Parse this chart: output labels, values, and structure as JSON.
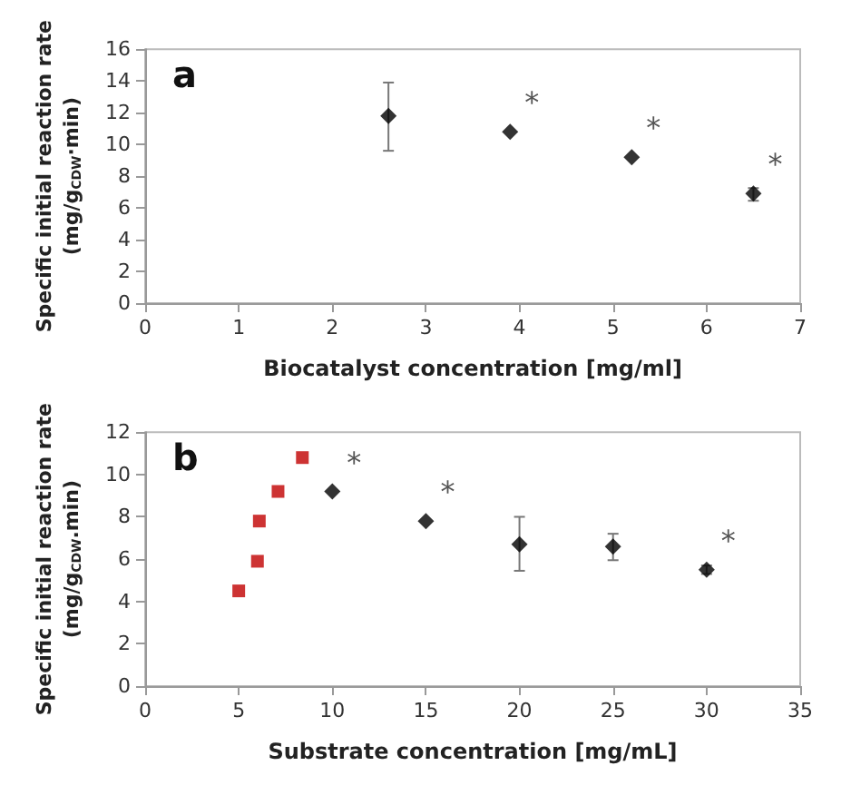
{
  "chart_data": [
    {
      "type": "scatter",
      "title": "a",
      "xlabel": "Biocatalyst concentration [mg/ml]",
      "ylabel": "Specific initial reaction rate\n(mg/g$_{CDW}$·min)",
      "xlim": [
        0,
        7
      ],
      "xticks": [
        0,
        1,
        2,
        3,
        4,
        5,
        6,
        7
      ],
      "ylim": [
        0,
        16
      ],
      "yticks": [
        0,
        2,
        4,
        6,
        8,
        10,
        12,
        14,
        16
      ],
      "grid": false,
      "series": [
        {
          "color": "#000000",
          "marker": "diamond",
          "x": [
            2.6,
            3.9,
            5.2,
            6.5
          ],
          "values": [
            11.8,
            10.8,
            9.2,
            6.9
          ],
          "errors": [
            [
              9.6,
              13.9
            ],
            null,
            null,
            [
              6.45,
              7.25
            ]
          ]
        }
      ],
      "annotations": [
        {
          "text": "*",
          "x": 3.9,
          "y": 10.8
        },
        {
          "text": "*",
          "x": 5.2,
          "y": 9.2
        },
        {
          "text": "*",
          "x": 6.5,
          "y": 6.9
        }
      ]
    },
    {
      "type": "scatter",
      "title": "b",
      "xlabel": "Substrate concentration [mg/mL]",
      "ylabel": "Specific initial reaction rate\n(mg/g$_{CDW}$.min)",
      "xlim": [
        0,
        35
      ],
      "xticks": [
        0,
        5,
        10,
        15,
        20,
        25,
        30,
        35
      ],
      "ylim": [
        0,
        12
      ],
      "yticks": [
        0,
        2,
        4,
        6,
        8,
        10,
        12
      ],
      "grid": false,
      "series": [
        {
          "color": "#c00000",
          "marker": "square",
          "x": [
            5,
            6,
            6.1,
            7.1,
            8.4
          ],
          "values": [
            4.5,
            5.9,
            7.8,
            9.2,
            10.8
          ]
        },
        {
          "color": "#000000",
          "marker": "diamond",
          "x": [
            10,
            15,
            20,
            25,
            30
          ],
          "values": [
            9.2,
            7.8,
            6.7,
            6.6,
            5.5
          ],
          "errors": [
            null,
            null,
            [
              5.45,
              8.0
            ],
            [
              5.95,
              7.2
            ],
            0.2
          ]
        }
      ],
      "annotations": [
        {
          "text": "*",
          "x": 10,
          "y": 9.2
        },
        {
          "text": "*",
          "x": 15,
          "y": 7.8
        },
        {
          "text": "*",
          "x": 30,
          "y": 5.5
        }
      ]
    }
  ]
}
